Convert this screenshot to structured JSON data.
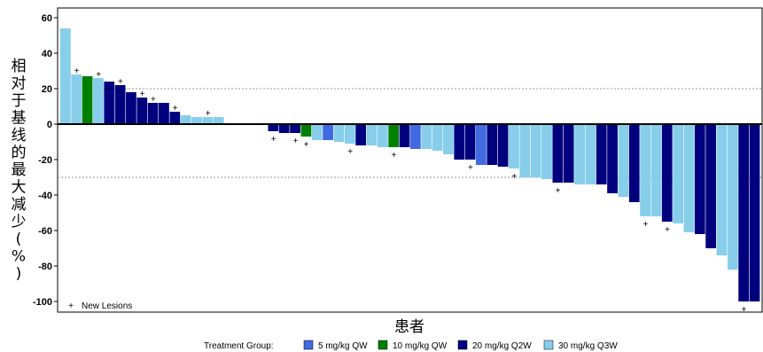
{
  "chart_data": {
    "type": "bar",
    "xlabel": "患者",
    "ylabel": "相对于基线的最大减少(%)",
    "ylim": [
      -105,
      65
    ],
    "yticks": [
      60,
      40,
      20,
      0,
      -20,
      -40,
      -60,
      -80,
      -100
    ],
    "reference_lines": [
      20,
      -30
    ],
    "legend": {
      "title": "Treatment Group:",
      "placement": "bottom",
      "items": [
        {
          "key": "5QW",
          "label": "5 mg/kg QW",
          "color": "#4169e1"
        },
        {
          "key": "10QW",
          "label": "10 mg/kg QW",
          "color": "#008000"
        },
        {
          "key": "20Q2W",
          "label": "20 mg/kg Q2W",
          "color": "#00007f"
        },
        {
          "key": "30Q3W",
          "label": "30 mg/kg Q3W",
          "color": "#87ceeb"
        }
      ]
    },
    "marker_note": {
      "symbol": "+",
      "label": "New Lesions"
    },
    "bars": [
      {
        "value": 54,
        "group": "30Q3W",
        "new_lesion": false
      },
      {
        "value": 28,
        "group": "30Q3W",
        "new_lesion": true
      },
      {
        "value": 27,
        "group": "10QW",
        "new_lesion": false
      },
      {
        "value": 26,
        "group": "30Q3W",
        "new_lesion": true
      },
      {
        "value": 24,
        "group": "20Q2W",
        "new_lesion": false
      },
      {
        "value": 22,
        "group": "20Q2W",
        "new_lesion": true
      },
      {
        "value": 18,
        "group": "20Q2W",
        "new_lesion": false
      },
      {
        "value": 15,
        "group": "20Q2W",
        "new_lesion": true
      },
      {
        "value": 12,
        "group": "20Q2W",
        "new_lesion": true
      },
      {
        "value": 12,
        "group": "20Q2W",
        "new_lesion": false
      },
      {
        "value": 7,
        "group": "20Q2W",
        "new_lesion": true
      },
      {
        "value": 5,
        "group": "30Q3W",
        "new_lesion": false
      },
      {
        "value": 4,
        "group": "30Q3W",
        "new_lesion": false
      },
      {
        "value": 4,
        "group": "30Q3W",
        "new_lesion": true
      },
      {
        "value": 4,
        "group": "30Q3W",
        "new_lesion": false
      },
      {
        "value": 0,
        "group": "30Q3W",
        "new_lesion": false
      },
      {
        "value": 0,
        "group": "30Q3W",
        "new_lesion": false
      },
      {
        "value": 0,
        "group": "30Q3W",
        "new_lesion": false
      },
      {
        "value": 0,
        "group": "30Q3W",
        "new_lesion": false
      },
      {
        "value": -4,
        "group": "20Q2W",
        "new_lesion": true
      },
      {
        "value": -5,
        "group": "20Q2W",
        "new_lesion": false
      },
      {
        "value": -5,
        "group": "20Q2W",
        "new_lesion": true
      },
      {
        "value": -7,
        "group": "10QW",
        "new_lesion": true
      },
      {
        "value": -9,
        "group": "30Q3W",
        "new_lesion": false
      },
      {
        "value": -9,
        "group": "5QW",
        "new_lesion": false
      },
      {
        "value": -10,
        "group": "30Q3W",
        "new_lesion": false
      },
      {
        "value": -11,
        "group": "30Q3W",
        "new_lesion": true
      },
      {
        "value": -12,
        "group": "20Q2W",
        "new_lesion": false
      },
      {
        "value": -12,
        "group": "30Q3W",
        "new_lesion": false
      },
      {
        "value": -13,
        "group": "30Q3W",
        "new_lesion": false
      },
      {
        "value": -13,
        "group": "10QW",
        "new_lesion": true
      },
      {
        "value": -13,
        "group": "20Q2W",
        "new_lesion": false
      },
      {
        "value": -14,
        "group": "5QW",
        "new_lesion": false
      },
      {
        "value": -14,
        "group": "30Q3W",
        "new_lesion": false
      },
      {
        "value": -15,
        "group": "30Q3W",
        "new_lesion": false
      },
      {
        "value": -17,
        "group": "30Q3W",
        "new_lesion": false
      },
      {
        "value": -20,
        "group": "20Q2W",
        "new_lesion": false
      },
      {
        "value": -20,
        "group": "20Q2W",
        "new_lesion": true
      },
      {
        "value": -23,
        "group": "5QW",
        "new_lesion": false
      },
      {
        "value": -23,
        "group": "20Q2W",
        "new_lesion": false
      },
      {
        "value": -24,
        "group": "20Q2W",
        "new_lesion": false
      },
      {
        "value": -25,
        "group": "30Q3W",
        "new_lesion": true
      },
      {
        "value": -30,
        "group": "30Q3W",
        "new_lesion": false
      },
      {
        "value": -30,
        "group": "30Q3W",
        "new_lesion": false
      },
      {
        "value": -31,
        "group": "30Q3W",
        "new_lesion": false
      },
      {
        "value": -33,
        "group": "20Q2W",
        "new_lesion": true
      },
      {
        "value": -33,
        "group": "20Q2W",
        "new_lesion": false
      },
      {
        "value": -34,
        "group": "30Q3W",
        "new_lesion": false
      },
      {
        "value": -34,
        "group": "30Q3W",
        "new_lesion": false
      },
      {
        "value": -34,
        "group": "20Q2W",
        "new_lesion": false
      },
      {
        "value": -39,
        "group": "20Q2W",
        "new_lesion": false
      },
      {
        "value": -41,
        "group": "30Q3W",
        "new_lesion": false
      },
      {
        "value": -44,
        "group": "20Q2W",
        "new_lesion": false
      },
      {
        "value": -52,
        "group": "30Q3W",
        "new_lesion": true
      },
      {
        "value": -52,
        "group": "30Q3W",
        "new_lesion": false
      },
      {
        "value": -55,
        "group": "20Q2W",
        "new_lesion": true
      },
      {
        "value": -56,
        "group": "30Q3W",
        "new_lesion": false
      },
      {
        "value": -61,
        "group": "30Q3W",
        "new_lesion": false
      },
      {
        "value": -62,
        "group": "20Q2W",
        "new_lesion": false
      },
      {
        "value": -70,
        "group": "20Q2W",
        "new_lesion": false
      },
      {
        "value": -74,
        "group": "30Q3W",
        "new_lesion": false
      },
      {
        "value": -82,
        "group": "30Q3W",
        "new_lesion": false
      },
      {
        "value": -100,
        "group": "20Q2W",
        "new_lesion": true
      },
      {
        "value": -100,
        "group": "20Q2W",
        "new_lesion": false
      }
    ]
  }
}
